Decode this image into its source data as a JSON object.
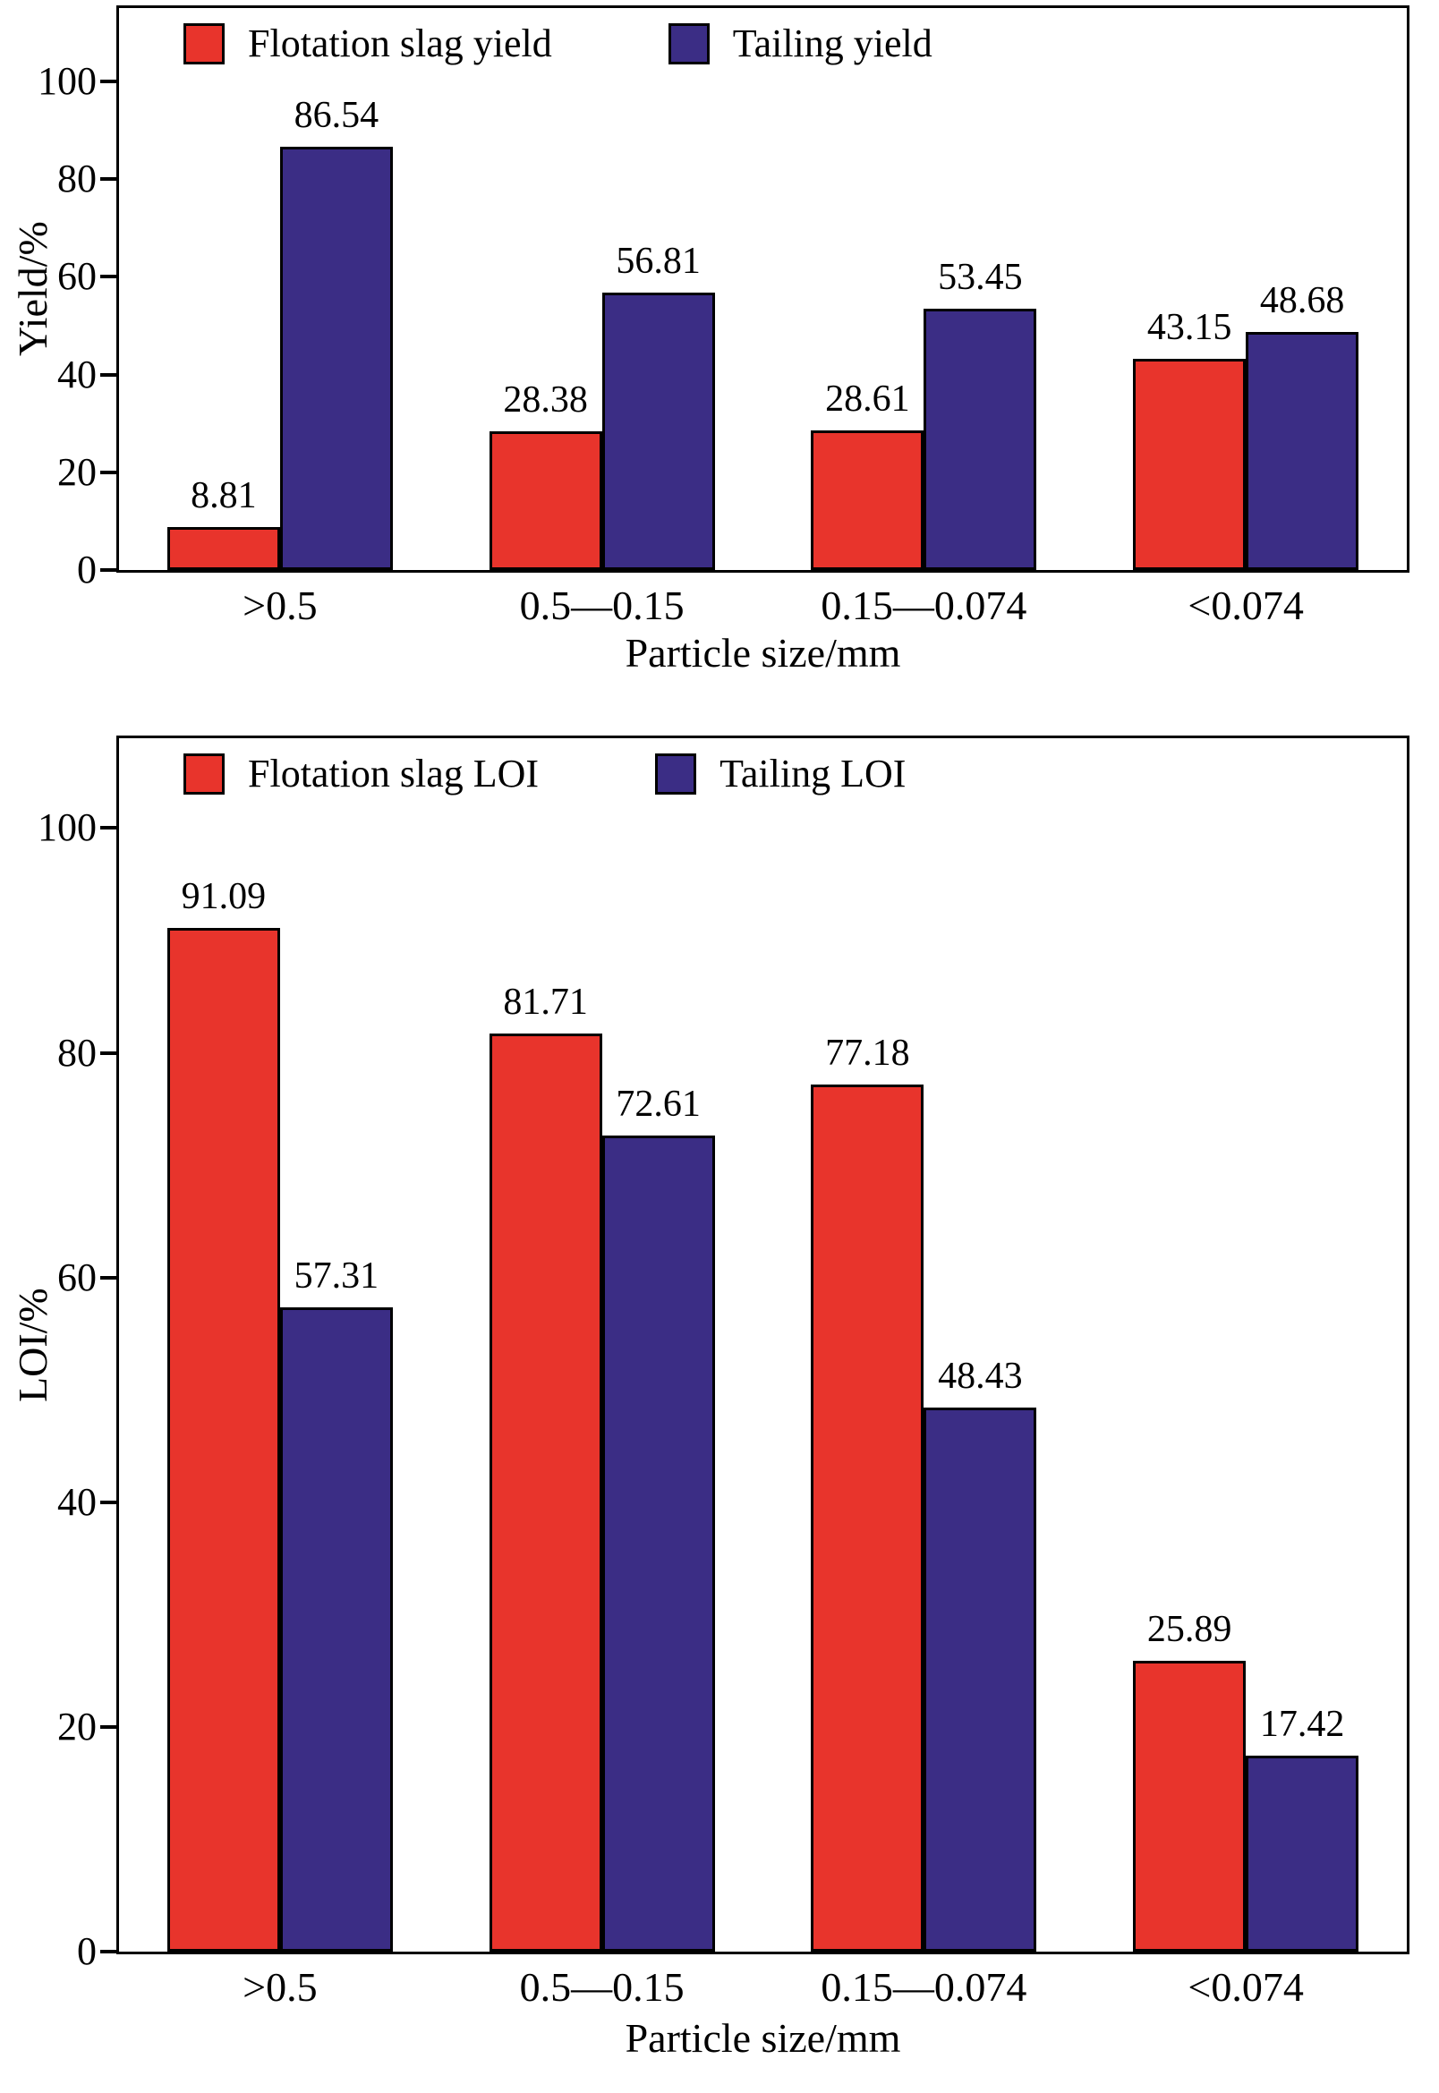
{
  "figure": {
    "background": "#ffffff",
    "series_colors": {
      "flotation_red": "#e8342c",
      "tailing_indigo": "#3b2d85"
    }
  },
  "chart_data": [
    {
      "type": "bar",
      "title": "",
      "categories": [
        ">0.5",
        "0.5—0.15",
        "0.15—0.074",
        "<0.074"
      ],
      "series": [
        {
          "name": "Flotation slag  yield",
          "color": "#e8342c",
          "values": [
            8.81,
            28.38,
            28.61,
            43.15
          ]
        },
        {
          "name": "Tailing yield",
          "color": "#3b2d85",
          "values": [
            86.54,
            56.81,
            53.45,
            48.68
          ]
        }
      ],
      "xlabel": "Particle size/mm",
      "ylabel": "Yield/%",
      "ylim": [
        0,
        100
      ],
      "yticks": [
        0,
        20,
        40,
        60,
        80,
        100
      ],
      "grid": false,
      "legend_position": "top-inside",
      "value_labels": true
    },
    {
      "type": "bar",
      "title": "",
      "categories": [
        ">0.5",
        "0.5—0.15",
        "0.15—0.074",
        "<0.074"
      ],
      "series": [
        {
          "name": "Flotation slag LOI",
          "color": "#e8342c",
          "values": [
            91.09,
            81.71,
            77.18,
            25.89
          ]
        },
        {
          "name": "Tailing LOI",
          "color": "#3b2d85",
          "values": [
            57.31,
            72.61,
            48.43,
            17.42
          ]
        }
      ],
      "xlabel": "Particle size/mm",
      "ylabel": "LOI/%",
      "ylim": [
        0,
        100
      ],
      "yticks": [
        0,
        20,
        40,
        60,
        80,
        100
      ],
      "grid": false,
      "legend_position": "top-inside",
      "value_labels": true
    }
  ]
}
